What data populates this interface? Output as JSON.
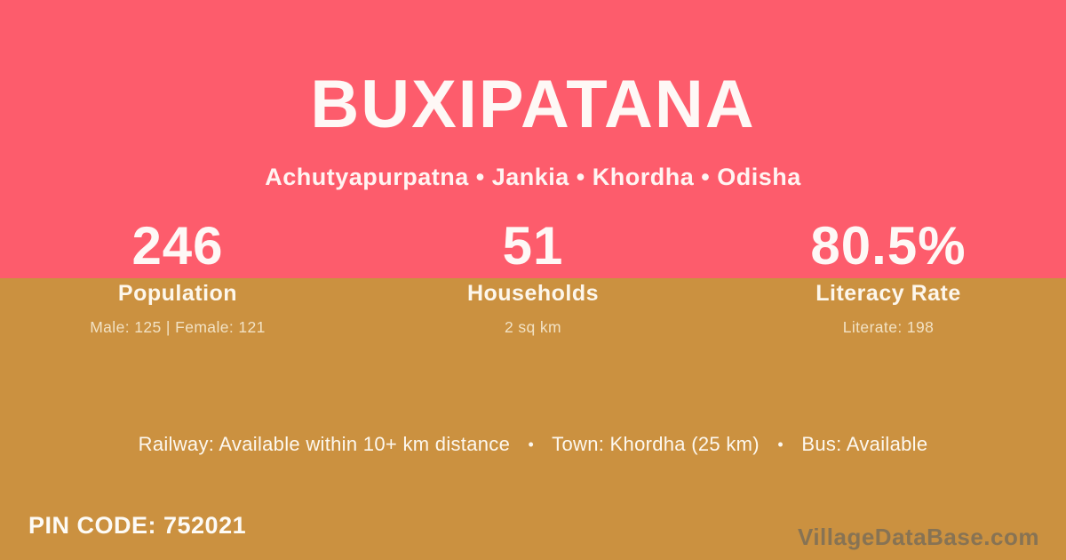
{
  "header": {
    "title": "BUXIPATANA",
    "breadcrumb": "Achutyapurpatna • Jankia • Khordha • Odisha"
  },
  "stats": [
    {
      "value": "246",
      "label": "Population",
      "detail": "Male: 125 | Female: 121"
    },
    {
      "value": "51",
      "label": "Households",
      "detail": "2 sq km"
    },
    {
      "value": "80.5%",
      "label": "Literacy Rate",
      "detail": "Literate: 198"
    }
  ],
  "amenities": {
    "railway": "Railway: Available within 10+ km distance",
    "town": "Town: Khordha (25 km)",
    "bus": "Bus: Available",
    "separator": "•"
  },
  "footer": {
    "pin_code": "PIN CODE: 752021",
    "watermark": "VillageDataBase.com"
  },
  "colors": {
    "header_background": "#FD5C6C",
    "body_background": "#CB9140",
    "primary_text": "#FFFFFF",
    "detail_text": "#F2E2C4",
    "watermark_text": "#8B8A80"
  }
}
